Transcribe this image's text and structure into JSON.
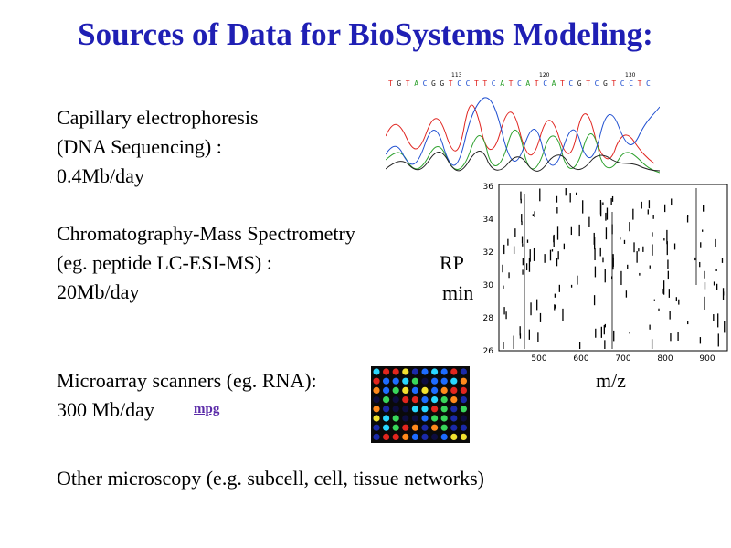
{
  "title": "Sources of Data for BioSystems Modeling:",
  "capillary": {
    "line1": "Capillary electrophoresis",
    "line2": "(DNA Sequencing) :",
    "line3": "0.4Mb/day"
  },
  "chromatography": {
    "line1": "Chromatography-Mass Spectrometry",
    "line2": "(eg. peptide LC-ESI-MS) :",
    "line3": "20Mb/day"
  },
  "microarray": {
    "line1": "Microarray scanners (eg. RNA):",
    "line2": "300 Mb/day",
    "link": "mpg"
  },
  "microscopy": {
    "line1": "Other microscopy (e.g. subcell, cell, tissue networks)"
  },
  "labels": {
    "rp": "RP",
    "min": "min",
    "mz": "m/z"
  },
  "dna_sequence": {
    "bases": "TGTACGGTCCTTCATCATCATCGTCGTCCTC",
    "positions": [
      "113",
      "120",
      "130"
    ],
    "colors": {
      "A": "#2ca02c",
      "C": "#1f4fd0",
      "G": "#222222",
      "T": "#e0241f"
    }
  },
  "ms_plot": {
    "y_ticks": [
      "36",
      "34",
      "32",
      "30",
      "28",
      "26"
    ],
    "x_ticks": [
      "500",
      "600",
      "700",
      "800",
      "900"
    ]
  },
  "colors": {
    "title": "#1f1fb4",
    "link": "#5a2aa8"
  }
}
